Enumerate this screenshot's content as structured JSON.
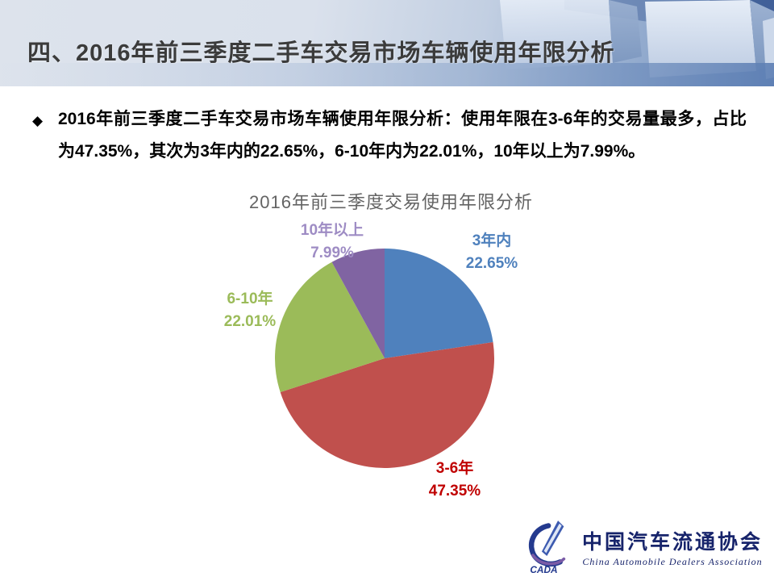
{
  "slide": {
    "header": {
      "title": "四、2016年前三季度二手车交易市场车辆使用年限分析"
    },
    "bullet": {
      "marker": "◆",
      "text": "2016年前三季度二手车交易市场车辆使用年限分析：使用年限在3-6年的交易量最多，占比为47.35%，其次为3年内的22.65%，6-10年内为22.01%，10年以上为7.99%。"
    }
  },
  "chart_data": {
    "type": "pie",
    "title": "2016年前三季度交易使用年限分析",
    "categories": [
      "3年内",
      "3-6年",
      "6-10年",
      "10年以上"
    ],
    "values": [
      22.65,
      47.35,
      22.01,
      7.99
    ],
    "unit": "%",
    "start_angle": "12-oclock",
    "direction": "clockwise",
    "legend_position": "none",
    "background": "#ffffff",
    "slice_colors": [
      "#4f81bd",
      "#c0504d",
      "#9bbb59",
      "#8064a2"
    ],
    "label_colors": [
      "#4f81bd",
      "#c00000",
      "#9bbb59",
      "#9e8cc4"
    ],
    "labels": [
      {
        "name": "3年内",
        "value": "22.65%"
      },
      {
        "name": "3-6年",
        "value": "47.35%"
      },
      {
        "name": "6-10年",
        "value": "22.01%"
      },
      {
        "name": "10年以上",
        "value": "7.99%"
      }
    ]
  },
  "footer_logo": {
    "acronym": "CADA",
    "name_cn": "中国汽车流通协会",
    "name_en": "China Automobile Dealers Association",
    "color": "#17246b"
  }
}
